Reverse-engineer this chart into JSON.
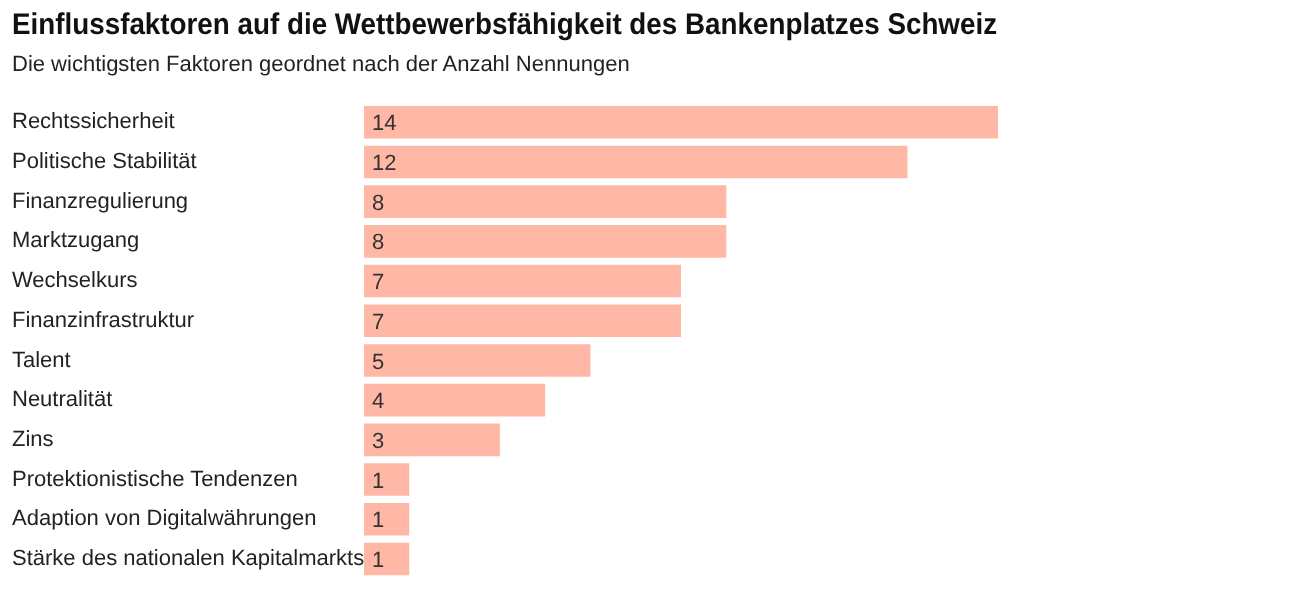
{
  "chart_data": {
    "type": "bar",
    "orientation": "horizontal",
    "title": "Einflussfaktoren auf die Wettbewerbsfähigkeit des Bankenplatzes Schweiz",
    "subtitle": "Die wichtigsten Faktoren geordnet nach der Anzahl Nennungen",
    "categories": [
      "Rechtssicherheit",
      "Politische Stabilität",
      "Finanzregulierung",
      "Marktzugang",
      "Wechselkurs",
      "Finanzinfrastruktur",
      "Talent",
      "Neutralität",
      "Zins",
      "Protektionistische Tendenzen",
      "Adaption von Digitalwährungen",
      "Stärke des nationalen Kapitalmarkts"
    ],
    "values": [
      14,
      12,
      8,
      8,
      7,
      7,
      5,
      4,
      3,
      1,
      1,
      1
    ],
    "color": "#ffb7a6",
    "data_labels": true,
    "grid": false,
    "legend": false
  }
}
